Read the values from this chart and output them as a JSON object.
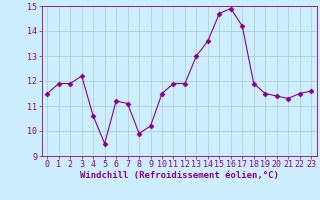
{
  "x": [
    0,
    1,
    2,
    3,
    4,
    5,
    6,
    7,
    8,
    9,
    10,
    11,
    12,
    13,
    14,
    15,
    16,
    17,
    18,
    19,
    20,
    21,
    22,
    23
  ],
  "y": [
    11.5,
    11.9,
    11.9,
    12.2,
    10.6,
    9.5,
    11.2,
    11.1,
    9.9,
    10.2,
    11.5,
    11.9,
    11.9,
    13.0,
    13.6,
    14.7,
    14.9,
    14.2,
    11.9,
    11.5,
    11.4,
    11.3,
    11.5,
    11.6
  ],
  "ylim": [
    9,
    15
  ],
  "xlim_min": -0.5,
  "xlim_max": 23.5,
  "yticks": [
    9,
    10,
    11,
    12,
    13,
    14,
    15
  ],
  "xticks": [
    0,
    1,
    2,
    3,
    4,
    5,
    6,
    7,
    8,
    9,
    10,
    11,
    12,
    13,
    14,
    15,
    16,
    17,
    18,
    19,
    20,
    21,
    22,
    23
  ],
  "xlabel": "Windchill (Refroidissement éolien,°C)",
  "line_color": "#880088",
  "marker": "D",
  "marker_size": 2.5,
  "background_color": "#cceeff",
  "grid_color": "#bbdddd",
  "tick_fontsize": 6,
  "label_fontsize": 6.5
}
